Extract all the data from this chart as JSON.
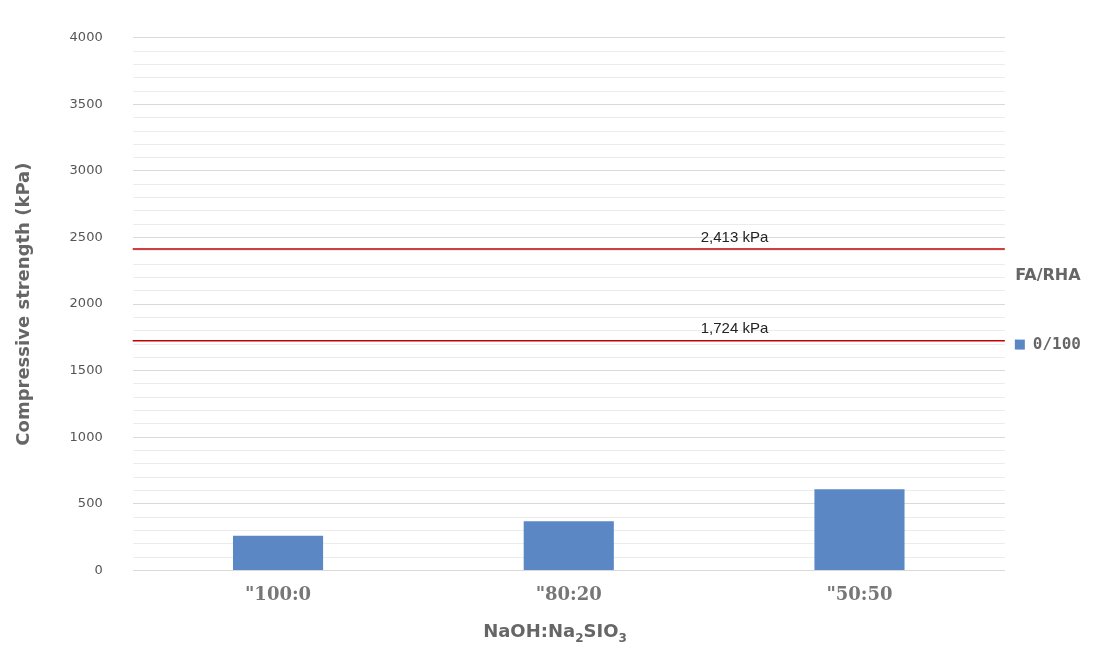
{
  "chart_data": {
    "type": "bar",
    "xlabel": "NaOH:Na$_{2}$SIO$_{3}$",
    "ylabel": "Compressive strength (kPa)",
    "legend_title": "FA/RHA",
    "categories": [
      "\"100:0",
      "\"80:20",
      "\"50:50"
    ],
    "series": [
      {
        "name": "0/100",
        "color": "#5b87c5",
        "values": [
          260,
          370,
          610
        ]
      }
    ],
    "ylim": [
      0,
      4000
    ],
    "yticks": [
      0,
      {
        "value": 100,
        "label": null
      },
      {
        "value": 200,
        "label": null
      },
      {
        "value": 300,
        "label": null
      },
      {
        "value": 400,
        "label": null
      },
      500,
      {
        "value": 600,
        "label": null
      },
      {
        "value": 700,
        "label": null
      },
      {
        "value": 800,
        "label": null
      },
      {
        "value": 900,
        "label": null
      },
      1000,
      {
        "value": 1100,
        "label": null
      },
      {
        "value": 1200,
        "label": null
      },
      {
        "value": 1300,
        "label": null
      },
      {
        "value": 1400,
        "label": null
      },
      1500,
      {
        "value": 1600,
        "label": null
      },
      {
        "value": 1700,
        "label": null
      },
      {
        "value": 1800,
        "label": null
      },
      {
        "value": 1900,
        "label": null
      },
      2000,
      {
        "value": 2100,
        "label": null
      },
      {
        "value": 2200,
        "label": null
      },
      {
        "value": 2300,
        "label": null
      },
      {
        "value": 2400,
        "label": null
      },
      2500,
      {
        "value": 2600,
        "label": null
      },
      {
        "value": 2700,
        "label": null
      },
      {
        "value": 2800,
        "label": null
      },
      {
        "value": 2900,
        "label": null
      },
      3000,
      {
        "value": 3100,
        "label": null
      },
      {
        "value": 3200,
        "label": null
      },
      {
        "value": 3300,
        "label": null
      },
      {
        "value": 3400,
        "label": null
      },
      3500,
      {
        "value": 3600,
        "label": null
      },
      {
        "value": 3700,
        "label": null
      },
      {
        "value": 3800,
        "label": null
      },
      {
        "value": 3900,
        "label": null
      },
      4000
    ],
    "grid": "y",
    "legend": "right",
    "ref_lines": [
      {
        "axis": "y",
        "value": 2413,
        "label": "2,413 kPa",
        "color": "#c00000"
      },
      {
        "axis": "y",
        "value": 1724,
        "label": "1,724 kPa",
        "color": "#c00000"
      }
    ]
  }
}
